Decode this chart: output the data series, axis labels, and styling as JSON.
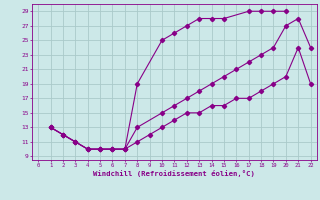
{
  "xlabel": "Windchill (Refroidissement éolien,°C)",
  "bg_color": "#cce8e8",
  "grid_color": "#aacaca",
  "line_color": "#880088",
  "xlim": [
    -0.5,
    22.5
  ],
  "ylim": [
    8.5,
    30.0
  ],
  "xticks": [
    0,
    1,
    2,
    3,
    4,
    5,
    6,
    7,
    8,
    9,
    10,
    11,
    12,
    13,
    14,
    15,
    16,
    17,
    18,
    19,
    20,
    21,
    22
  ],
  "yticks": [
    9,
    11,
    13,
    15,
    17,
    19,
    21,
    23,
    25,
    27,
    29
  ],
  "curve1_x": [
    1,
    2,
    3,
    4,
    5,
    6,
    7,
    8,
    10,
    11,
    12,
    13,
    14,
    15,
    17,
    18,
    19,
    20
  ],
  "curve1_y": [
    13,
    12,
    11,
    10,
    10,
    10,
    10,
    19,
    25,
    26,
    27,
    28,
    28,
    28,
    29,
    29,
    29,
    29
  ],
  "curve2_x": [
    1,
    2,
    3,
    4,
    5,
    6,
    7,
    8,
    10,
    11,
    12,
    13,
    14,
    15,
    16,
    17,
    18,
    19,
    20,
    21,
    22
  ],
  "curve2_y": [
    13,
    12,
    11,
    10,
    10,
    10,
    10,
    13,
    15,
    16,
    17,
    18,
    19,
    20,
    21,
    22,
    23,
    24,
    27,
    28,
    24
  ],
  "curve3_x": [
    1,
    2,
    3,
    4,
    5,
    6,
    7,
    8,
    9,
    10,
    11,
    12,
    13,
    14,
    15,
    16,
    17,
    18,
    19,
    20,
    21,
    22
  ],
  "curve3_y": [
    13,
    12,
    11,
    10,
    10,
    10,
    10,
    11,
    12,
    13,
    14,
    15,
    15,
    16,
    16,
    17,
    17,
    18,
    19,
    20,
    24,
    19
  ]
}
